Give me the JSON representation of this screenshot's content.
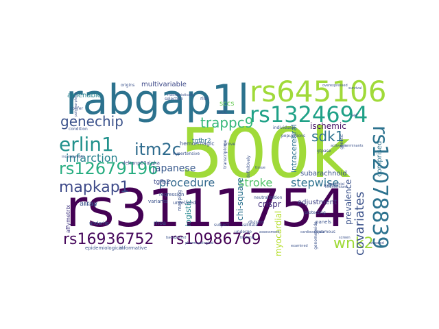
{
  "words": [
    {
      "text": "rs3111754",
      "color": "#440154"
    },
    {
      "text": "500k",
      "color": "#a0da39"
    },
    {
      "text": "rabgap1l",
      "color": "#2c728e"
    },
    {
      "text": "rs645106",
      "color": "#a0da39"
    },
    {
      "text": "rs1324694",
      "color": "#1fa187"
    },
    {
      "text": "rs12078839",
      "color": "#2c728e"
    },
    {
      "text": "rs12679196",
      "color": "#27ad81"
    },
    {
      "text": "rs16936752",
      "color": "#46085c"
    },
    {
      "text": "rs10986769",
      "color": "#440154"
    },
    {
      "text": "genechip",
      "color": "#3b528b"
    },
    {
      "text": "erlin1",
      "color": "#21918c"
    },
    {
      "text": "itm2c",
      "color": "#2f6c8e"
    },
    {
      "text": "mapkap1",
      "color": "#3e4a89"
    },
    {
      "text": "trappc9",
      "color": "#35b779"
    },
    {
      "text": "sdk1",
      "color": "#2c728e"
    },
    {
      "text": "wnk2",
      "color": "#a0da39"
    },
    {
      "text": "covariates",
      "color": "#3b528b"
    },
    {
      "text": "infarction",
      "color": "#26828e"
    },
    {
      "text": "procedure",
      "color": "#31688e"
    },
    {
      "text": "stroke",
      "color": "#52c569"
    },
    {
      "text": "stepwise",
      "color": "#2c728e"
    },
    {
      "text": "japanese",
      "color": "#38598c"
    },
    {
      "text": "ischemic",
      "color": "#471365"
    },
    {
      "text": "adjustment",
      "color": "#414487"
    },
    {
      "text": "subarachnoid",
      "color": "#3b528b"
    },
    {
      "text": "comprised",
      "color": "#2c728e"
    },
    {
      "text": "prevalence",
      "color": "#3b528b"
    },
    {
      "text": "myocardial",
      "color": "#b5de2b"
    },
    {
      "text": "crispr",
      "color": "#46337e"
    },
    {
      "text": "chi-square",
      "color": "#2c728e"
    },
    {
      "text": "logistic",
      "color": "#23888e"
    },
    {
      "text": "intracerebral",
      "color": "#2c728e"
    },
    {
      "text": "amenable",
      "color": "#26828e"
    },
    {
      "text": "multivariable",
      "color": "#3e4a89"
    },
    {
      "text": "sccs",
      "color": "#6ccd5a"
    },
    {
      "text": "scc",
      "color": "#3b528b"
    },
    {
      "text": "hemorrhagic",
      "color": "#3b528b"
    },
    {
      "text": "tgfbr2",
      "color": "#2c728e"
    },
    {
      "text": "tgfb2",
      "color": "#3e4a89"
    },
    {
      "text": "array",
      "color": "#3b528b"
    },
    {
      "text": "affymetrix",
      "color": "#443983"
    },
    {
      "text": "deltanp63alpha",
      "color": "#3b528b"
    },
    {
      "text": "confer",
      "color": "#3b528b"
    },
    {
      "text": "condition",
      "color": "#3b528b"
    },
    {
      "text": "origins",
      "color": "#3b528b"
    },
    {
      "text": "selection",
      "color": "#3b528b"
    },
    {
      "text": "hypertensive",
      "color": "#3b528b"
    },
    {
      "text": "risk",
      "color": "#3b528b"
    },
    {
      "text": "regression",
      "color": "#3b528b"
    },
    {
      "text": "unrelated",
      "color": "#3b528b"
    },
    {
      "text": "variants",
      "color": "#3b528b"
    },
    {
      "text": "rhoa",
      "color": "#3b528b"
    },
    {
      "text": "underlie",
      "color": "#3b528b"
    },
    {
      "text": "epidemiological",
      "color": "#3b528b"
    },
    {
      "text": "informative",
      "color": "#3b528b"
    },
    {
      "text": "mapping",
      "color": "#3b528b"
    },
    {
      "text": "subject",
      "color": "#3b528b"
    },
    {
      "text": "undergo",
      "color": "#3b528b"
    },
    {
      "text": "division",
      "color": "#3b528b"
    },
    {
      "text": "panels",
      "color": "#3b528b"
    },
    {
      "text": "squamous",
      "color": "#3b528b"
    },
    {
      "text": "protecting",
      "color": "#3b528b"
    },
    {
      "text": "validate",
      "color": "#3b528b"
    },
    {
      "text": "neutralization",
      "color": "#3b528b"
    },
    {
      "text": "individuals",
      "color": "#3b528b"
    },
    {
      "text": "populations",
      "color": "#3b528b"
    },
    {
      "text": "gtpase",
      "color": "#3b528b"
    },
    {
      "text": "set",
      "color": "#3b528b"
    },
    {
      "text": "genome-wide",
      "color": "#3b528b"
    },
    {
      "text": "prove",
      "color": "#3b528b"
    },
    {
      "text": "definitively",
      "color": "#3b528b"
    },
    {
      "text": "overexpressed",
      "color": "#3b528b"
    },
    {
      "text": "polymorphism",
      "color": "#3b528b"
    },
    {
      "text": "background",
      "color": "#3b528b"
    },
    {
      "text": "pharmacological",
      "color": "#3b528b"
    },
    {
      "text": "bilateral",
      "color": "#3b528b"
    },
    {
      "text": "interventions",
      "color": "#3b528b"
    },
    {
      "text": "beneficial",
      "color": "#3b528b"
    },
    {
      "text": "purpose",
      "color": "#3b528b"
    },
    {
      "text": "tissue",
      "color": "#3b528b"
    },
    {
      "text": "transcriptome",
      "color": "#3b528b"
    },
    {
      "text": "cardiovascular",
      "color": "#3b528b"
    },
    {
      "text": "assessment",
      "color": "#3b528b"
    },
    {
      "text": "examined",
      "color": "#3b528b"
    },
    {
      "text": "screen",
      "color": "#3b528b"
    },
    {
      "text": "revealed",
      "color": "#3b528b"
    },
    {
      "text": "factors",
      "color": "#3b528b"
    },
    {
      "text": "genetic",
      "color": "#3b528b"
    },
    {
      "text": "activates",
      "color": "#3b528b"
    },
    {
      "text": "determinants",
      "color": "#3b528b"
    },
    {
      "text": "survival",
      "color": "#3b528b"
    },
    {
      "text": "mechanistically",
      "color": "#3b528b"
    },
    {
      "text": "incompatible",
      "color": "#3b528b"
    }
  ]
}
